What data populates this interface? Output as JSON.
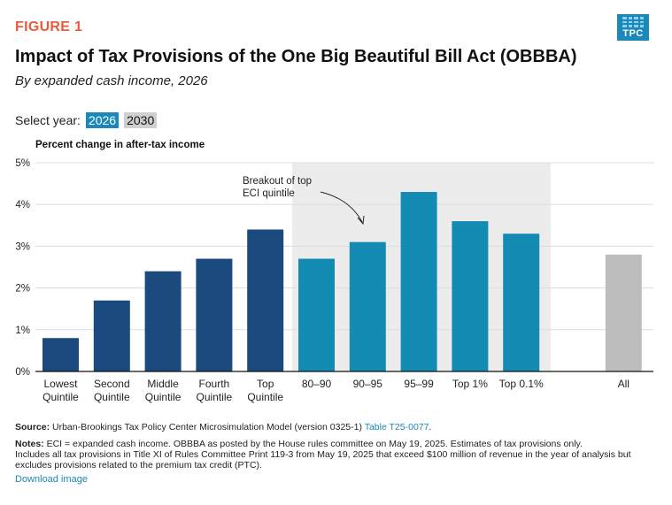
{
  "figure_label": "FIGURE 1",
  "logo_text": "TPC",
  "title": "Impact of Tax Provisions of the One Big Beautiful Bill Act (OBBBA)",
  "subtitle": "By expanded cash income, 2026",
  "year_select": {
    "label": "Select year:",
    "options": [
      "2026",
      "2030"
    ],
    "selected": "2026"
  },
  "chart_data": {
    "type": "bar",
    "ylabel": "Percent change in after-tax income",
    "ylim": [
      0,
      5
    ],
    "yticks": [
      "0%",
      "1%",
      "2%",
      "3%",
      "4%",
      "5%"
    ],
    "grid": true,
    "categories": [
      [
        "Lowest",
        "Quintile"
      ],
      [
        "Second",
        "Quintile"
      ],
      [
        "Middle",
        "Quintile"
      ],
      [
        "Fourth",
        "Quintile"
      ],
      [
        "Top",
        "Quintile"
      ],
      [
        "80–90"
      ],
      [
        "90–95"
      ],
      [
        "95–99"
      ],
      [
        "Top 1%"
      ],
      [
        "Top 0.1%"
      ],
      [
        "All"
      ]
    ],
    "values": [
      0.8,
      1.7,
      2.4,
      2.7,
      3.4,
      2.7,
      3.1,
      4.3,
      3.6,
      3.3,
      2.8
    ],
    "groups": [
      "quintile",
      "quintile",
      "quintile",
      "quintile",
      "quintile",
      "breakout",
      "breakout",
      "breakout",
      "breakout",
      "breakout",
      "all"
    ],
    "colors": {
      "quintile": "#1a4a7e",
      "breakout": "#148bb2",
      "all": "#bdbdbd",
      "shade": "#ececec",
      "grid": "#dddddd"
    },
    "annotation": [
      "Breakout of top",
      "ECI quintile"
    ]
  },
  "source": {
    "label": "Source:",
    "text": " Urban-Brookings Tax Policy Center Microsimulation Model (version 0325-1) ",
    "link": "Table T25-0077",
    "end": "."
  },
  "notes": {
    "label": "Notes:",
    "lines": [
      " ECI = expanded cash income. OBBBA as posted by the House rules committee on May 19, 2025. Estimates of tax provisions only.",
      "Includes all tax provisions in Title XI of Rules Committee Print 119-3 from May 19, 2025 that exceed $100 million of revenue in the year of analysis but",
      "excludes provisions related to the premium tax credit (PTC)."
    ]
  },
  "download_label": "Download image"
}
